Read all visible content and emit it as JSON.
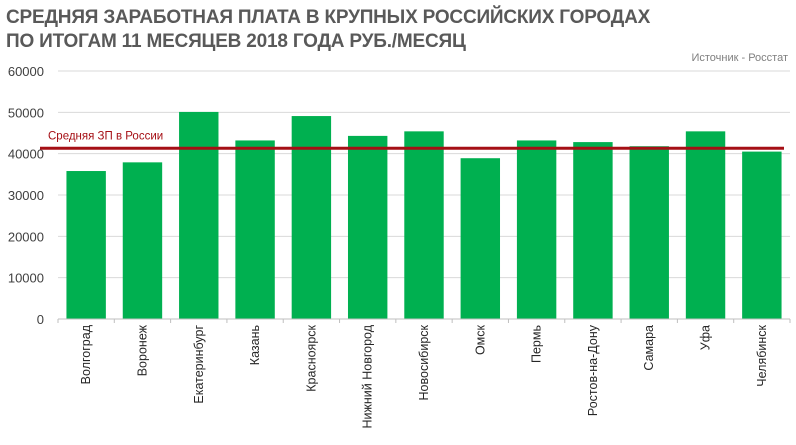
{
  "chart_data": {
    "type": "bar",
    "title_lines": [
      "СРЕДНЯЯ ЗАРАБОТНАЯ ПЛАТА В КРУПНЫХ РОССИЙСКИХ ГОРОДАХ",
      "ПО ИТОГАМ 11 МЕСЯЦЕВ 2018 ГОДА РУБ./МЕСЯЦ"
    ],
    "source": "Источник - Росстат",
    "categories": [
      "Волгоград",
      "Воронеж",
      "Екатеринбург",
      "Казань",
      "Красноярск",
      "Нижний Новгород",
      "Новосибирск",
      "Омск",
      "Пермь",
      "Ростов-на-Дону",
      "Самара",
      "Уфа",
      "Челябинск"
    ],
    "values": [
      35800,
      37900,
      50100,
      43200,
      49100,
      44300,
      45400,
      38900,
      43200,
      42800,
      41800,
      45400,
      40500
    ],
    "ylim": [
      0,
      60000
    ],
    "yticks": [
      0,
      10000,
      20000,
      30000,
      40000,
      50000,
      60000
    ],
    "grid": true,
    "bar_color": "#00b050",
    "reference_line": {
      "label": "Средняя ЗП в России",
      "value": 41300,
      "color": "#a50f15"
    }
  }
}
